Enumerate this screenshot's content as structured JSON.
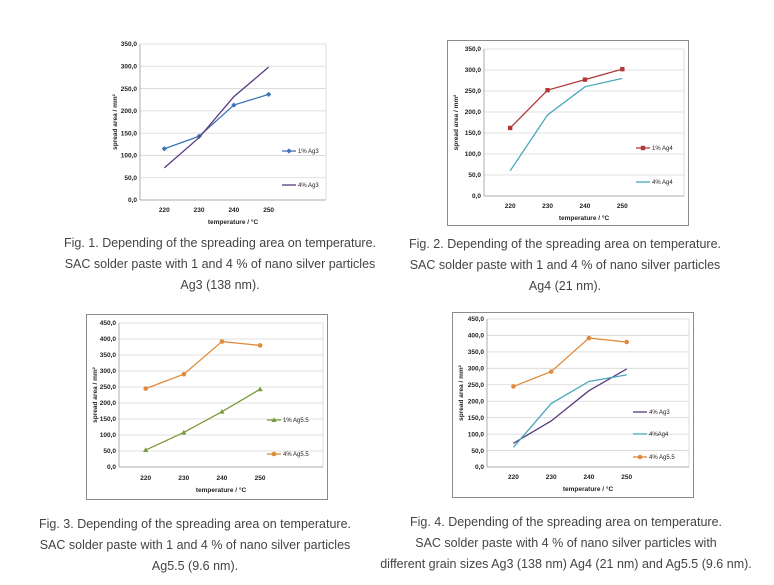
{
  "chart_data": [
    {
      "id": "fig1",
      "type": "line",
      "title": "",
      "xlabel": "temperature / °C",
      "ylabel": "spread area / mm²",
      "categories": [
        "220",
        "230",
        "240",
        "250"
      ],
      "ylim": [
        0,
        350
      ],
      "ytick_labels": [
        "0,0",
        "50,0",
        "100,0",
        "150,0",
        "200,0",
        "250,0",
        "300,0",
        "350,0"
      ],
      "grid": true,
      "series": [
        {
          "name": "1% Ag3",
          "values": [
            115,
            143,
            213,
            237
          ],
          "color": "#3e73b9",
          "marker": "diamond"
        },
        {
          "name": "4% Ag3",
          "values": [
            72,
            140,
            232,
            298
          ],
          "color": "#5a3a7e",
          "marker": "none"
        }
      ],
      "caption": [
        "Fig. 1. Depending of the spreading area on temperature.",
        "SAC solder paste with 1 and 4 % of nano silver particles",
        "Ag3 (138 nm)."
      ]
    },
    {
      "id": "fig2",
      "type": "line",
      "title": "",
      "xlabel": "temperature / °C",
      "ylabel": "spread area / mm²",
      "categories": [
        "220",
        "230",
        "240",
        "250"
      ],
      "ylim": [
        0,
        350
      ],
      "ytick_labels": [
        "0,0",
        "50,0",
        "100,0",
        "150,0",
        "200,0",
        "250,0",
        "300,0",
        "350,0"
      ],
      "grid": true,
      "series": [
        {
          "name": "1% Ag4",
          "values": [
            162,
            252,
            277,
            302
          ],
          "color": "#b03a3a",
          "marker": "square"
        },
        {
          "name": "4% Ag4",
          "values": [
            60,
            193,
            260,
            280
          ],
          "color": "#4aa6bd",
          "marker": "none"
        }
      ],
      "caption": [
        "Fig. 2. Depending of the spreading area on temperature.",
        "SAC solder paste with 1 and 4 % of nano silver particles",
        "Ag4 (21 nm)."
      ]
    },
    {
      "id": "fig3",
      "type": "line",
      "title": "",
      "xlabel": "temperature / °C",
      "ylabel": "spread area / mm²",
      "categories": [
        "220",
        "230",
        "240",
        "250"
      ],
      "ylim": [
        0,
        450
      ],
      "ytick_labels": [
        "0,0",
        "50,0",
        "100,0",
        "150,0",
        "200,0",
        "250,0",
        "300,0",
        "350,0",
        "400,0",
        "450,0"
      ],
      "grid": true,
      "series": [
        {
          "name": "1% Ag5.5",
          "values": [
            53,
            108,
            173,
            243
          ],
          "color": "#7a9a3a",
          "marker": "triangle"
        },
        {
          "name": "4% Ag5.5",
          "values": [
            245,
            290,
            392,
            380
          ],
          "color": "#e08a3c",
          "marker": "circle"
        }
      ],
      "caption": [
        "Fig. 3. Depending of the spreading area on temperature.",
        "SAC solder paste with 1 and 4 % of nano silver particles",
        "Ag5.5 (9.6 nm)."
      ]
    },
    {
      "id": "fig4",
      "type": "line",
      "title": "",
      "xlabel": "temperature / °C",
      "ylabel": "spread area / mm²",
      "categories": [
        "220",
        "230",
        "240",
        "250"
      ],
      "ylim": [
        0,
        450
      ],
      "ytick_labels": [
        "0,0",
        "50,0",
        "100,0",
        "150,0",
        "200,0",
        "250,0",
        "300,0",
        "350,0",
        "400,0",
        "450,0"
      ],
      "grid": true,
      "series": [
        {
          "name": "4% Ag3",
          "values": [
            72,
            140,
            232,
            298
          ],
          "color": "#5a3a7e",
          "marker": "none"
        },
        {
          "name": "4%Ag4",
          "values": [
            60,
            193,
            260,
            280
          ],
          "color": "#4aa6bd",
          "marker": "none"
        },
        {
          "name": "4% Ag5.5",
          "values": [
            245,
            290,
            392,
            380
          ],
          "color": "#e08a3c",
          "marker": "circle"
        }
      ],
      "caption": [
        "Fig. 4. Depending of the spreading area on temperature.",
        "SAC solder paste with 4 % of nano silver particles with",
        "different grain sizes Ag3 (138 nm) Ag4 (21 nm) and Ag5.5 (9.6 nm)."
      ]
    }
  ]
}
